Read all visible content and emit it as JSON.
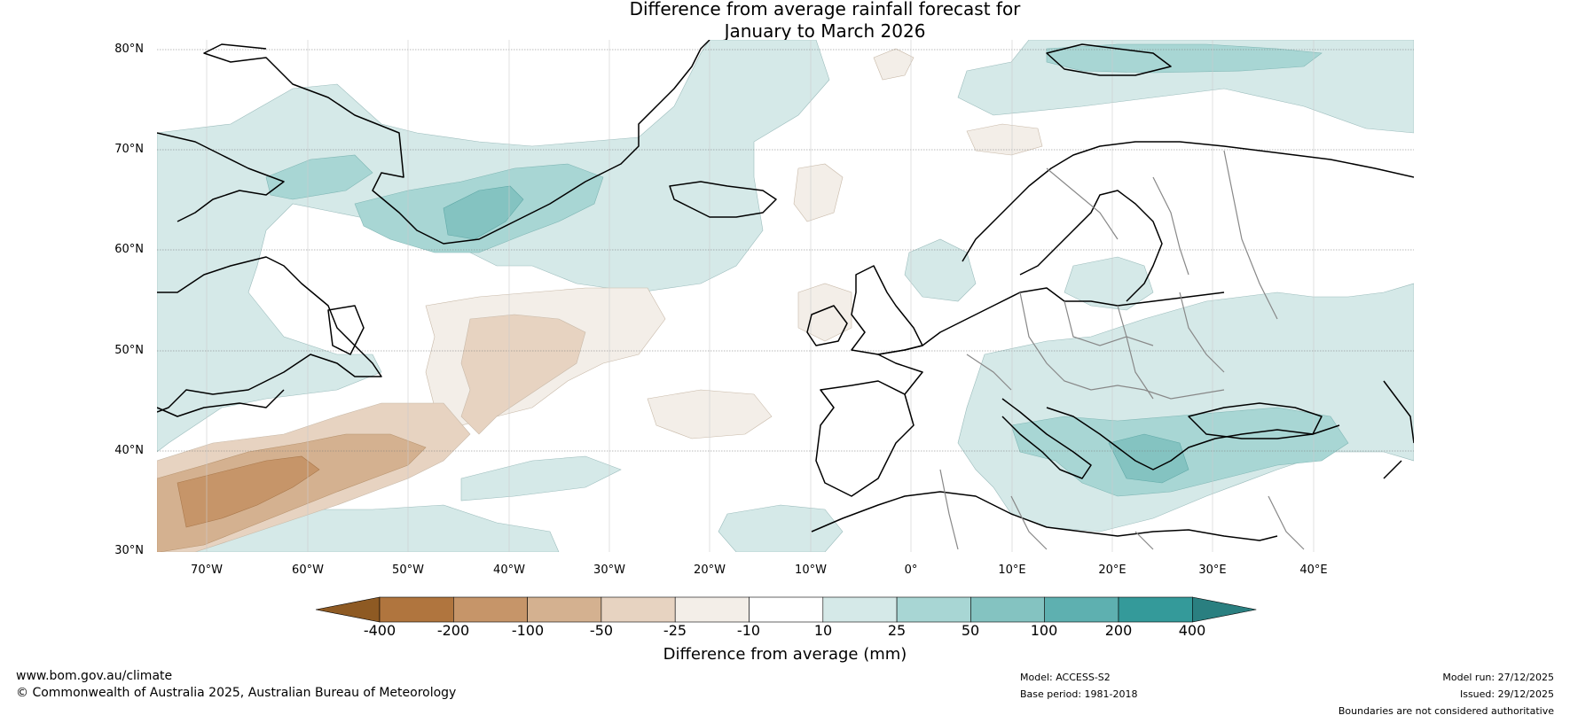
{
  "title": {
    "line1": "Difference from average rainfall forecast for",
    "line2": "January to March 2026"
  },
  "map": {
    "lat_labels": [
      "80°N",
      "70°N",
      "60°N",
      "50°N",
      "40°N",
      "30°N"
    ],
    "lon_labels": [
      "70°W",
      "60°W",
      "50°W",
      "40°W",
      "30°W",
      "20°W",
      "10°W",
      "0°",
      "10°E",
      "20°E",
      "30°E",
      "40°E"
    ],
    "lat_range": [
      30,
      80
    ],
    "lon_range": [
      -75,
      50
    ]
  },
  "colorbar": {
    "ticks": [
      "-400",
      "-200",
      "-100",
      "-50",
      "-25",
      "-10",
      "10",
      "25",
      "50",
      "100",
      "200",
      "400"
    ],
    "colors": [
      "#8e5a23",
      "#b0753e",
      "#c69569",
      "#d4b190",
      "#e7d3c1",
      "#f3eee8",
      "#ffffff",
      "#d5e9e8",
      "#a8d6d4",
      "#84c3c1",
      "#5eb0b0",
      "#349a9a",
      "#2a7f80"
    ],
    "label": "Difference from average (mm)"
  },
  "footer": {
    "website": "www.bom.gov.au/climate",
    "copyright": "© Commonwealth of Australia 2025, Australian Bureau of Meteorology",
    "model": "Model: ACCESS-S2",
    "base_period": "Base period: 1981-2018",
    "model_run": "Model run: 27/12/2025",
    "issued": "Issued: 29/12/2025",
    "disclaimer": "Boundaries are not considered authoritative"
  }
}
